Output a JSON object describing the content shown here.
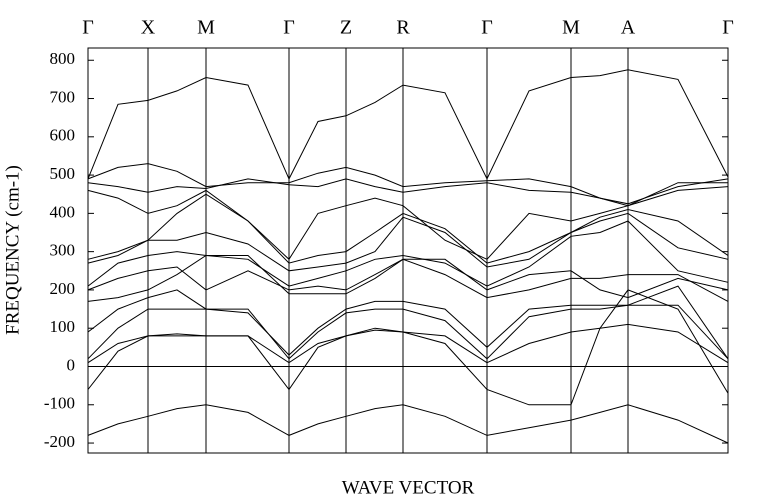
{
  "chart_data": {
    "type": "line",
    "x_label": "WAVE VECTOR",
    "y_label": "FREQUENCY (cm-1)",
    "xlim": [
      0,
      640
    ],
    "ylim": [
      -226,
      832
    ],
    "xticks": [
      {
        "value": 0,
        "label": "Γ"
      },
      {
        "value": 60,
        "label": "X"
      },
      {
        "value": 118,
        "label": "M"
      },
      {
        "value": 201,
        "label": "Γ"
      },
      {
        "value": 258,
        "label": "Z"
      },
      {
        "value": 315,
        "label": "R"
      },
      {
        "value": 399,
        "label": "Γ"
      },
      {
        "value": 483,
        "label": "M"
      },
      {
        "value": 540,
        "label": "A"
      },
      {
        "value": 640,
        "label": "Γ"
      }
    ],
    "yticks": [
      -200,
      -100,
      0,
      100,
      200,
      300,
      400,
      500,
      600,
      700,
      800
    ],
    "zero_line": true,
    "x": [
      0,
      30,
      60,
      89,
      118,
      160,
      201,
      230,
      258,
      287,
      315,
      357,
      399,
      441,
      483,
      512,
      540,
      590,
      640
    ],
    "color": "#000000",
    "series": [
      {
        "values": [
          490,
          685,
          695,
          720,
          755,
          735,
          490,
          640,
          655,
          690,
          735,
          715,
          490,
          720,
          755,
          760,
          775,
          750,
          495
        ]
      },
      {
        "values": [
          490,
          520,
          530,
          510,
          470,
          480,
          480,
          505,
          520,
          500,
          470,
          480,
          485,
          490,
          470,
          440,
          425,
          470,
          490
        ]
      },
      {
        "values": [
          480,
          470,
          455,
          470,
          465,
          490,
          475,
          470,
          490,
          470,
          455,
          470,
          480,
          460,
          455,
          440,
          420,
          460,
          470
        ]
      },
      {
        "values": [
          460,
          440,
          400,
          420,
          460,
          380,
          280,
          400,
          420,
          440,
          420,
          330,
          280,
          400,
          380,
          400,
          420,
          480,
          480
        ]
      },
      {
        "values": [
          280,
          300,
          330,
          400,
          450,
          380,
          270,
          290,
          300,
          350,
          400,
          360,
          270,
          300,
          350,
          390,
          410,
          380,
          290
        ]
      },
      {
        "values": [
          270,
          290,
          330,
          330,
          350,
          320,
          250,
          260,
          270,
          300,
          390,
          350,
          260,
          280,
          350,
          380,
          400,
          310,
          280
        ]
      },
      {
        "values": [
          210,
          270,
          290,
          300,
          290,
          280,
          210,
          230,
          250,
          280,
          290,
          270,
          210,
          260,
          340,
          350,
          380,
          250,
          220
        ]
      },
      {
        "values": [
          200,
          230,
          250,
          260,
          200,
          250,
          200,
          210,
          200,
          240,
          280,
          280,
          200,
          240,
          250,
          200,
          180,
          230,
          200
        ]
      },
      {
        "values": [
          170,
          180,
          200,
          240,
          290,
          290,
          190,
          190,
          190,
          230,
          280,
          240,
          180,
          200,
          230,
          230,
          240,
          240,
          170
        ]
      },
      {
        "values": [
          90,
          150,
          180,
          200,
          150,
          140,
          30,
          100,
          150,
          170,
          170,
          150,
          50,
          150,
          160,
          160,
          160,
          210,
          20
        ]
      },
      {
        "values": [
          20,
          100,
          150,
          150,
          150,
          150,
          20,
          90,
          140,
          150,
          150,
          120,
          20,
          130,
          150,
          150,
          160,
          160,
          20
        ]
      },
      {
        "values": [
          10,
          60,
          80,
          80,
          80,
          80,
          10,
          60,
          80,
          95,
          90,
          80,
          10,
          60,
          90,
          100,
          110,
          90,
          10
        ]
      },
      {
        "values": [
          -60,
          40,
          80,
          85,
          80,
          80,
          -60,
          50,
          80,
          100,
          90,
          60,
          -60,
          -100,
          -100,
          100,
          200,
          150,
          -70
        ]
      },
      {
        "values": [
          -180,
          -150,
          -130,
          -110,
          -100,
          -120,
          -180,
          -150,
          -130,
          -110,
          -100,
          -130,
          -180,
          -160,
          -140,
          -120,
          -100,
          -140,
          -200
        ]
      }
    ]
  }
}
